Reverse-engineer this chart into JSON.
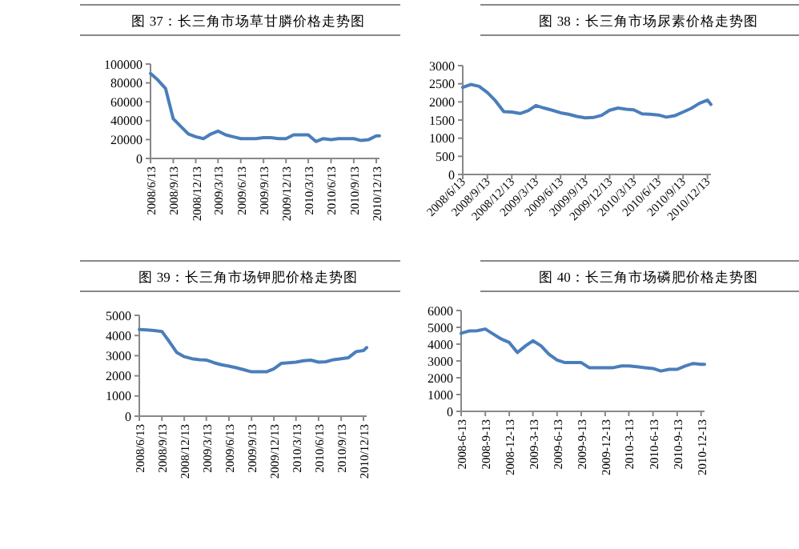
{
  "chart_data": [
    {
      "type": "line",
      "title": "图 37：长三角市场草甘膦价格走势图",
      "x": [
        "2008-06-13",
        "2008-07-13",
        "2008-08-13",
        "2008-09-13",
        "2008-10-13",
        "2008-11-13",
        "2008-12-13",
        "2009-01-13",
        "2009-02-13",
        "2009-03-13",
        "2009-04-13",
        "2009-05-13",
        "2009-06-13",
        "2009-07-13",
        "2009-08-13",
        "2009-09-13",
        "2009-10-13",
        "2009-11-13",
        "2009-12-13",
        "2010-01-13",
        "2010-02-13",
        "2010-03-13",
        "2010-04-13",
        "2010-05-13",
        "2010-06-13",
        "2010-07-13",
        "2010-08-13",
        "2010-09-13",
        "2010-10-13",
        "2010-11-13",
        "2010-12-13",
        "2010-12-26"
      ],
      "series": [
        {
          "color": "#4a7ebb",
          "values": [
            90000,
            83000,
            74000,
            42000,
            34000,
            26000,
            23000,
            21000,
            26000,
            29000,
            25000,
            23000,
            21000,
            21000,
            21000,
            22000,
            22000,
            21000,
            21000,
            25000,
            25000,
            25000,
            18000,
            21000,
            20000,
            21000,
            21000,
            21000,
            19000,
            20000,
            24000,
            24000
          ]
        }
      ],
      "xlim": [
        "2008-06-13",
        "2010-12-26"
      ],
      "xticks": [
        {
          "value": "2008-06-13",
          "label": "2008/6/13"
        },
        {
          "value": "2008-09-13",
          "label": "2008/9/13"
        },
        {
          "value": "2008-12-13",
          "label": "2008/12/13"
        },
        {
          "value": "2009-03-13",
          "label": "2009/3/13"
        },
        {
          "value": "2009-06-13",
          "label": "2009/6/13"
        },
        {
          "value": "2009-09-13",
          "label": "2009/9/13"
        },
        {
          "value": "2009-12-13",
          "label": "2009/12/13"
        },
        {
          "value": "2010-03-13",
          "label": "2010/3/13"
        },
        {
          "value": "2010-06-13",
          "label": "2010/6/13"
        },
        {
          "value": "2010-09-13",
          "label": "2010/9/13"
        },
        {
          "value": "2010-12-13",
          "label": "2010/12/13"
        }
      ],
      "ylim": [
        0,
        100000
      ],
      "yticks": [
        0,
        20000,
        40000,
        60000,
        80000,
        100000
      ]
    },
    {
      "type": "line",
      "title": "图 38：长三角市场尿素价格走势图",
      "x": [
        "2008-06-13",
        "2008-07-13",
        "2008-08-13",
        "2008-09-13",
        "2008-10-13",
        "2008-11-13",
        "2008-12-13",
        "2009-01-13",
        "2009-02-13",
        "2009-03-13",
        "2009-04-13",
        "2009-05-13",
        "2009-06-13",
        "2009-07-13",
        "2009-08-13",
        "2009-09-13",
        "2009-10-13",
        "2009-11-13",
        "2009-12-13",
        "2010-01-13",
        "2010-02-13",
        "2010-03-13",
        "2010-04-13",
        "2010-05-13",
        "2010-06-13",
        "2010-07-13",
        "2010-08-13",
        "2010-09-13",
        "2010-10-13",
        "2010-11-13",
        "2010-12-13",
        "2010-12-26"
      ],
      "series": [
        {
          "color": "#4a7ebb",
          "values": [
            2400,
            2480,
            2430,
            2260,
            2030,
            1730,
            1720,
            1680,
            1760,
            1900,
            1830,
            1770,
            1700,
            1660,
            1600,
            1560,
            1570,
            1630,
            1770,
            1830,
            1800,
            1780,
            1670,
            1660,
            1640,
            1580,
            1620,
            1720,
            1820,
            1960,
            2050,
            1930
          ]
        }
      ],
      "xlim": [
        "2008-06-13",
        "2010-12-26"
      ],
      "xticks": [
        {
          "value": "2008-06-13",
          "label": "2008/6/13"
        },
        {
          "value": "2008-09-13",
          "label": "2008/9/13"
        },
        {
          "value": "2008-12-13",
          "label": "2008/12/13"
        },
        {
          "value": "2009-03-13",
          "label": "2009/3/13"
        },
        {
          "value": "2009-06-13",
          "label": "2009/6/13"
        },
        {
          "value": "2009-09-13",
          "label": "2009/9/13"
        },
        {
          "value": "2009-12-13",
          "label": "2009/12/13"
        },
        {
          "value": "2010-03-13",
          "label": "2010/3/13"
        },
        {
          "value": "2010-06-13",
          "label": "2010/6/13"
        },
        {
          "value": "2010-09-13",
          "label": "2010/9/13"
        },
        {
          "value": "2010-12-13",
          "label": "2010/12/13"
        }
      ],
      "ylim": [
        0,
        3000
      ],
      "yticks": [
        0,
        500,
        1000,
        1500,
        2000,
        2500,
        3000
      ]
    },
    {
      "type": "line",
      "title": "图 39：长三角市场钾肥价格走势图",
      "x": [
        "2008-06-13",
        "2008-07-13",
        "2008-08-13",
        "2008-09-13",
        "2008-10-13",
        "2008-11-13",
        "2008-12-13",
        "2009-01-13",
        "2009-02-13",
        "2009-03-13",
        "2009-04-13",
        "2009-05-13",
        "2009-06-13",
        "2009-07-13",
        "2009-08-13",
        "2009-09-13",
        "2009-10-13",
        "2009-11-13",
        "2009-12-13",
        "2010-01-13",
        "2010-02-13",
        "2010-03-13",
        "2010-04-13",
        "2010-05-13",
        "2010-06-13",
        "2010-07-13",
        "2010-08-13",
        "2010-09-13",
        "2010-10-13",
        "2010-11-13",
        "2010-12-13",
        "2010-12-26"
      ],
      "series": [
        {
          "color": "#4a7ebb",
          "values": [
            4300,
            4280,
            4250,
            4200,
            3700,
            3150,
            2950,
            2850,
            2800,
            2780,
            2650,
            2550,
            2480,
            2400,
            2300,
            2200,
            2200,
            2200,
            2350,
            2620,
            2650,
            2680,
            2750,
            2780,
            2680,
            2700,
            2800,
            2850,
            2900,
            3200,
            3250,
            3400
          ]
        }
      ],
      "xlim": [
        "2008-06-13",
        "2010-12-26"
      ],
      "xticks": [
        {
          "value": "2008-06-13",
          "label": "2008/6/13"
        },
        {
          "value": "2008-09-13",
          "label": "2008/9/13"
        },
        {
          "value": "2008-12-13",
          "label": "2008/12/13"
        },
        {
          "value": "2009-03-13",
          "label": "2009/3/13"
        },
        {
          "value": "2009-06-13",
          "label": "2009/6/13"
        },
        {
          "value": "2009-09-13",
          "label": "2009/9/13"
        },
        {
          "value": "2009-12-13",
          "label": "2009/12/13"
        },
        {
          "value": "2010-03-13",
          "label": "2010/3/13"
        },
        {
          "value": "2010-06-13",
          "label": "2010/6/13"
        },
        {
          "value": "2010-09-13",
          "label": "2010/9/13"
        },
        {
          "value": "2010-12-13",
          "label": "2010/12/13"
        }
      ],
      "ylim": [
        0,
        5000
      ],
      "yticks": [
        0,
        1000,
        2000,
        3000,
        4000,
        5000
      ]
    },
    {
      "type": "line",
      "title": "图 40：长三角市场磷肥价格走势图",
      "x": [
        "2008-06-13",
        "2008-07-13",
        "2008-08-13",
        "2008-09-13",
        "2008-10-13",
        "2008-11-13",
        "2008-12-13",
        "2009-01-13",
        "2009-02-13",
        "2009-03-13",
        "2009-04-13",
        "2009-05-13",
        "2009-06-13",
        "2009-07-13",
        "2009-08-13",
        "2009-09-13",
        "2009-10-13",
        "2009-11-13",
        "2009-12-13",
        "2010-01-13",
        "2010-02-13",
        "2010-03-13",
        "2010-04-13",
        "2010-05-13",
        "2010-06-13",
        "2010-07-13",
        "2010-08-13",
        "2010-09-13",
        "2010-10-13",
        "2010-11-13",
        "2010-12-13",
        "2010-12-26"
      ],
      "series": [
        {
          "color": "#4a7ebb",
          "values": [
            4650,
            4780,
            4800,
            4900,
            4600,
            4300,
            4100,
            3500,
            3900,
            4200,
            3900,
            3400,
            3050,
            2900,
            2900,
            2900,
            2600,
            2600,
            2600,
            2600,
            2700,
            2700,
            2650,
            2600,
            2550,
            2400,
            2500,
            2500,
            2700,
            2850,
            2800,
            2800
          ]
        }
      ],
      "xlim": [
        "2008-06-13",
        "2010-12-26"
      ],
      "xticks": [
        {
          "value": "2008-06-13",
          "label": "2008-6-13"
        },
        {
          "value": "2008-09-13",
          "label": "2008-9-13"
        },
        {
          "value": "2008-12-13",
          "label": "2008-12-13"
        },
        {
          "value": "2009-03-13",
          "label": "2009-3-13"
        },
        {
          "value": "2009-06-13",
          "label": "2009-6-13"
        },
        {
          "value": "2009-09-13",
          "label": "2009-9-13"
        },
        {
          "value": "2009-12-13",
          "label": "2009-12-13"
        },
        {
          "value": "2010-03-13",
          "label": "2010-3-13"
        },
        {
          "value": "2010-06-13",
          "label": "2010-6-13"
        },
        {
          "value": "2010-09-13",
          "label": "2010-9-13"
        },
        {
          "value": "2010-12-13",
          "label": "2010-12-13"
        }
      ],
      "ylim": [
        0,
        6000
      ],
      "yticks": [
        0,
        1000,
        2000,
        3000,
        4000,
        5000,
        6000
      ]
    }
  ]
}
